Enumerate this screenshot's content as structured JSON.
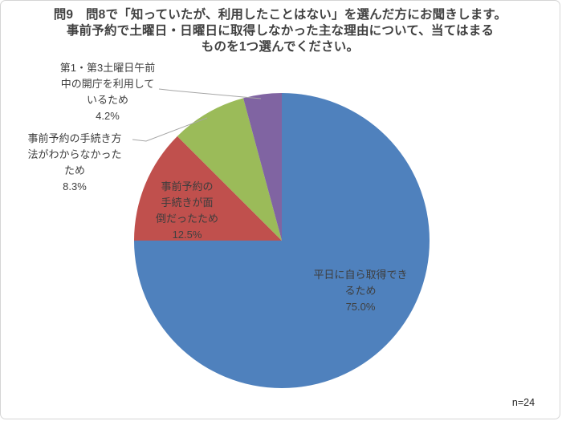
{
  "title": {
    "lines": [
      "問9　問8で「知っていたが、利用したことはない」を選んだ方にお聞きします。",
      "事前予約で土曜日・日曜日に取得しなかった主な理由について、当てはまる",
      "ものを1つ選んでください。"
    ]
  },
  "chart_data": {
    "type": "pie",
    "title": "問9 問8で「知っていたが、利用したことはない」を選んだ方にお聞きします。事前予約で土曜日・日曜日に取得しなかった主な理由について、当てはまるものを1つ選んでください。",
    "n_label": "n=24",
    "start_angle_deg": 0,
    "direction": "clockwise",
    "series": [
      {
        "key": "weekday-self",
        "name": "平日に自ら取得できるため",
        "value": 75.0,
        "pct_label": "75.0%",
        "color": "#4F81BD",
        "label_lines": [
          "平日に自ら取得でき",
          "るため"
        ],
        "label_placement": "inside"
      },
      {
        "key": "procedure-tedious",
        "name": "事前予約の手続きが面倒だったため",
        "value": 12.5,
        "pct_label": "12.5%",
        "color": "#C0504D",
        "label_lines": [
          "事前予約の",
          "手続きが面",
          "倒だったため"
        ],
        "label_placement": "inside"
      },
      {
        "key": "method-unknown",
        "name": "事前予約の手続き方法がわからなかったため",
        "value": 8.3,
        "pct_label": "8.3%",
        "color": "#9BBB59",
        "label_lines": [
          "事前予約の手続き方",
          "法がわからなかった",
          "ため"
        ],
        "label_placement": "outside"
      },
      {
        "key": "saturday-open",
        "name": "第1・第3土曜日午前中の開庁を利用しているため",
        "value": 4.2,
        "pct_label": "4.2%",
        "color": "#8064A2",
        "label_lines": [
          "第1・第3土曜日午前",
          "中の開庁を利用して",
          "いるため"
        ],
        "label_placement": "outside"
      }
    ],
    "leader_line_color": "#a6a6a6"
  }
}
